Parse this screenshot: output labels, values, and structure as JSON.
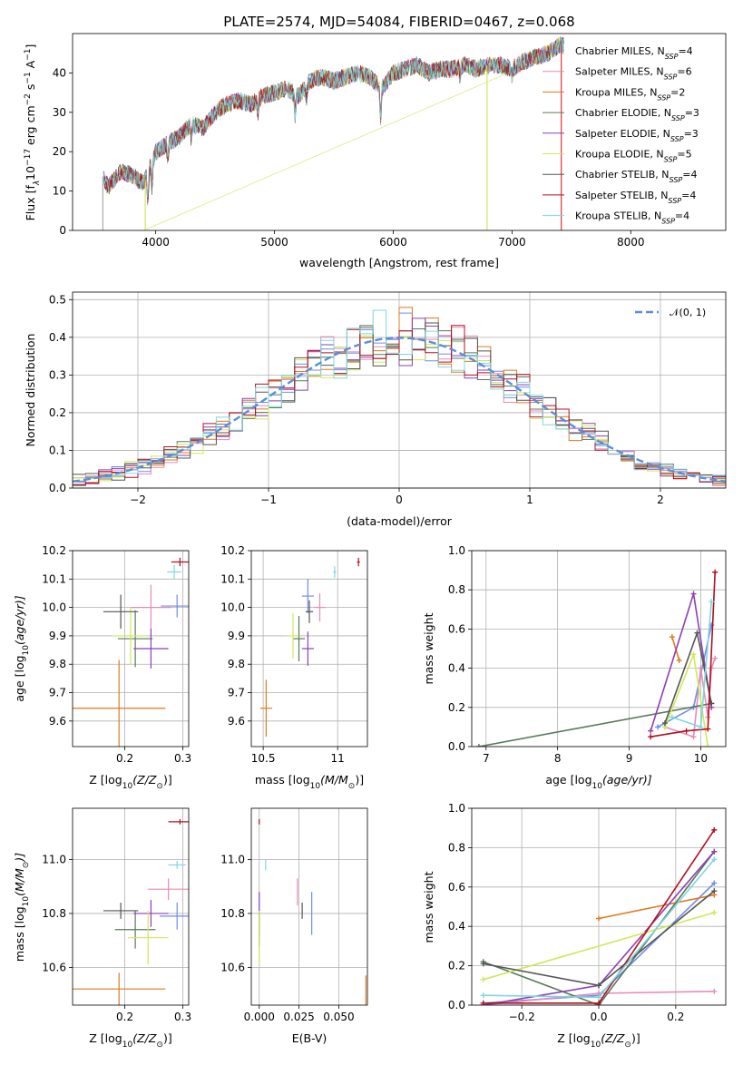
{
  "figure": {
    "title": "PLATE=2574, MJD=54084, FIBERID=0467, z=0.068"
  },
  "models": [
    {
      "name": "Chabrier MILES",
      "n_ssp": "4",
      "color": "#6f8ee8"
    },
    {
      "name": "Salpeter MILES",
      "n_ssp": "6",
      "color": "#e68cb8"
    },
    {
      "name": "Kroupa MILES",
      "n_ssp": "2",
      "color": "#e07a1e"
    },
    {
      "name": "Chabrier ELODIE",
      "n_ssp": "3",
      "color": "#5a7a5a"
    },
    {
      "name": "Salpeter ELODIE",
      "n_ssp": "3",
      "color": "#8e3fb5"
    },
    {
      "name": "Kroupa ELODIE",
      "n_ssp": "5",
      "color": "#cfe85a"
    },
    {
      "name": "Chabrier STELIB",
      "n_ssp": "4",
      "color": "#555555"
    },
    {
      "name": "Salpeter STELIB",
      "n_ssp": "4",
      "color": "#b01020"
    },
    {
      "name": "Kroupa STELIB",
      "n_ssp": "4",
      "color": "#7fd6e0"
    }
  ],
  "legend_ssp_prefix": "N",
  "legend_ssp_sub": "SSP",
  "chart_data": [
    {
      "id": "spectrum",
      "type": "line",
      "xlabel": "wavelength [Angstrom, rest frame]",
      "ylabel": "Flux [f",
      "ylabel_lambda": "λ",
      "ylabel_rest": "10",
      "ylabel_exp1": "−17",
      "ylabel_mid": " erg cm",
      "ylabel_exp2": "−2",
      "ylabel_mid2": " s",
      "ylabel_exp3": "−1",
      "ylabel_end": " A",
      "ylabel_exp4": "−1",
      "ylabel_close": "]",
      "xlim": [
        3300,
        8800
      ],
      "ylim": [
        0,
        50
      ],
      "xticks": [
        4000,
        5000,
        6000,
        7000,
        8000
      ],
      "yticks": [
        0,
        10,
        20,
        30,
        40
      ],
      "grid": false,
      "legend": "top-right",
      "description_points": {
        "x": [
          3550,
          3600,
          3700,
          3800,
          3900,
          4000,
          4100,
          4200,
          4300,
          4400,
          4500,
          4600,
          4700,
          4800,
          4900,
          5000,
          5100,
          5200,
          5300,
          5400,
          5500,
          5600,
          5700,
          5800,
          5900,
          6000,
          6100,
          6200,
          6300,
          6400,
          6500,
          6600,
          6700,
          6800,
          6900,
          7000,
          7100,
          7200,
          7300,
          7400
        ],
        "y": [
          14,
          11,
          15,
          14,
          12,
          20,
          22,
          24,
          27,
          26,
          30,
          32,
          33,
          32,
          34,
          35,
          36,
          34,
          38,
          39,
          38,
          39,
          40,
          39,
          36,
          40,
          41,
          42,
          40,
          41,
          41,
          42,
          41,
          42,
          42,
          41,
          43,
          44,
          45,
          47
        ]
      }
    },
    {
      "id": "residuals",
      "type": "bar",
      "xlabel": "(data-model)/error",
      "ylabel": "Normed distribution",
      "xlim": [
        -2.5,
        2.5
      ],
      "ylim": [
        0,
        0.52
      ],
      "xticks": [
        -2,
        -1,
        0,
        1,
        2
      ],
      "yticks": [
        0.0,
        0.1,
        0.2,
        0.3,
        0.4,
        0.5
      ],
      "grid": true,
      "legend": "top-right",
      "legend_label": "𝒩(0, 1)",
      "bin_width": 0.1,
      "bin_start": -2.5
    },
    {
      "id": "age-vs-Z",
      "type": "scatter",
      "xlabel": "Z [log",
      "xlabel_sub": "10",
      "xlabel_mid": "(Z/Z",
      "xlabel_sub2": "⊙",
      "xlabel_end": ")]",
      "ylabel": "age  [log",
      "ylabel_sub": "10",
      "ylabel_end": "(age/yr)]",
      "xlim": [
        0.11,
        0.31
      ],
      "ylim": [
        9.51,
        10.2
      ],
      "xticks": [
        0.2,
        0.3
      ],
      "yticks": [
        9.6,
        9.7,
        9.8,
        9.9,
        10.0,
        10.1,
        10.2
      ],
      "grid": true,
      "points": [
        {
          "model": 0,
          "x": 0.29,
          "y": 10.005,
          "xerr": 0.028,
          "yerr": 0.04
        },
        {
          "model": 1,
          "x": 0.245,
          "y": 10.0,
          "xerr": 0.035,
          "yerr": 0.08
        },
        {
          "model": 2,
          "x": 0.19,
          "y": 9.645,
          "xerr": 0.08,
          "yerr": 0.17
        },
        {
          "model": 3,
          "x": 0.218,
          "y": 9.89,
          "xerr": 0.03,
          "yerr": 0.1
        },
        {
          "model": 4,
          "x": 0.245,
          "y": 9.855,
          "xerr": 0.03,
          "yerr": 0.07
        },
        {
          "model": 5,
          "x": 0.21,
          "y": 9.9,
          "xerr": 0.03,
          "yerr": 0.1
        },
        {
          "model": 6,
          "x": 0.193,
          "y": 9.985,
          "xerr": 0.03,
          "yerr": 0.06
        },
        {
          "model": 7,
          "x": 0.295,
          "y": 10.16,
          "xerr": 0.015,
          "yerr": 0.015
        },
        {
          "model": 8,
          "x": 0.285,
          "y": 10.125,
          "xerr": 0.012,
          "yerr": 0.025
        }
      ]
    },
    {
      "id": "age-vs-mass",
      "type": "scatter",
      "xlabel": "mass [log",
      "xlabel_sub": "10",
      "xlabel_mid": "(M/M",
      "xlabel_sub2": "⊙",
      "xlabel_end": ")]",
      "xlim": [
        10.42,
        11.2
      ],
      "ylim": [
        9.51,
        10.2
      ],
      "xticks": [
        10.5,
        11.0
      ],
      "yticks": [
        9.6,
        9.7,
        9.8,
        9.9,
        10.0,
        10.1,
        10.2
      ],
      "grid": true,
      "points": [
        {
          "model": 0,
          "x": 10.8,
          "y": 10.04,
          "xerr": 0.04,
          "yerr": 0.06
        },
        {
          "model": 1,
          "x": 10.88,
          "y": 10.0,
          "xerr": 0.04,
          "yerr": 0.05
        },
        {
          "model": 2,
          "x": 10.52,
          "y": 9.645,
          "xerr": 0.04,
          "yerr": 0.1
        },
        {
          "model": 3,
          "x": 10.74,
          "y": 9.89,
          "xerr": 0.04,
          "yerr": 0.08
        },
        {
          "model": 4,
          "x": 10.8,
          "y": 9.855,
          "xerr": 0.04,
          "yerr": 0.06
        },
        {
          "model": 5,
          "x": 10.7,
          "y": 9.9,
          "xerr": 0.04,
          "yerr": 0.08
        },
        {
          "model": 6,
          "x": 10.81,
          "y": 9.985,
          "xerr": 0.025,
          "yerr": 0.04
        },
        {
          "model": 7,
          "x": 11.14,
          "y": 10.16,
          "xerr": 0.01,
          "yerr": 0.015
        },
        {
          "model": 8,
          "x": 10.98,
          "y": 10.125,
          "xerr": 0.01,
          "yerr": 0.02
        }
      ]
    },
    {
      "id": "weight-vs-age",
      "type": "line",
      "xlabel": "age  [log",
      "xlabel_sub": "10",
      "xlabel_end": "(age/yr)]",
      "ylabel": "mass weight",
      "xlim": [
        6.8,
        10.35
      ],
      "ylim": [
        0,
        1.0
      ],
      "xticks": [
        7,
        8,
        9,
        10
      ],
      "yticks": [
        0.0,
        0.2,
        0.4,
        0.6,
        0.8,
        1.0
      ],
      "grid": true,
      "series": [
        {
          "model": 0,
          "x": [
            9.4,
            9.9,
            10.15
          ],
          "y": [
            0.1,
            0.2,
            0.62
          ]
        },
        {
          "model": 1,
          "x": [
            9.5,
            9.9,
            10.0,
            10.1,
            10.15,
            10.2
          ],
          "y": [
            0.1,
            0.05,
            0.4,
            0.15,
            0.4,
            0.45
          ]
        },
        {
          "model": 2,
          "x": [
            9.6,
            9.7
          ],
          "y": [
            0.56,
            0.44
          ]
        },
        {
          "model": 3,
          "x": [
            6.9,
            10.15
          ],
          "y": [
            0.0,
            0.22
          ]
        },
        {
          "model": 4,
          "x": [
            9.3,
            9.9,
            10.15
          ],
          "y": [
            0.08,
            0.78,
            0.2
          ]
        },
        {
          "model": 5,
          "x": [
            9.5,
            9.9,
            10.1
          ],
          "y": [
            0.1,
            0.47,
            0.0
          ]
        },
        {
          "model": 6,
          "x": [
            9.5,
            9.95,
            10.15
          ],
          "y": [
            0.12,
            0.58,
            0.22
          ]
        },
        {
          "model": 7,
          "x": [
            9.3,
            9.8,
            10.1,
            10.2
          ],
          "y": [
            0.05,
            0.08,
            0.09,
            0.89
          ]
        },
        {
          "model": 8,
          "x": [
            9.6,
            10.0,
            10.15
          ],
          "y": [
            0.15,
            0.1,
            0.74
          ]
        }
      ]
    },
    {
      "id": "mass-vs-Z",
      "type": "scatter",
      "xlabel": "Z [log",
      "xlabel_sub": "10",
      "xlabel_mid": "(Z/Z",
      "xlabel_sub2": "⊙",
      "xlabel_end": ")]",
      "ylabel": "mass [log",
      "ylabel_sub": "10",
      "ylabel_mid": "(M/M",
      "ylabel_sub2": "⊙",
      "ylabel_end": ")]",
      "xlim": [
        0.11,
        0.31
      ],
      "ylim": [
        10.46,
        11.19
      ],
      "xticks": [
        0.2,
        0.3
      ],
      "yticks": [
        10.6,
        10.8,
        11.0
      ],
      "grid": true,
      "points": [
        {
          "model": 0,
          "x": 0.29,
          "y": 10.79,
          "xerr": 0.03,
          "yerr": 0.05
        },
        {
          "model": 1,
          "x": 0.275,
          "y": 10.89,
          "xerr": 0.035,
          "yerr": 0.04
        },
        {
          "model": 2,
          "x": 0.19,
          "y": 10.52,
          "xerr": 0.08,
          "yerr": 0.06
        },
        {
          "model": 3,
          "x": 0.218,
          "y": 10.74,
          "xerr": 0.035,
          "yerr": 0.07
        },
        {
          "model": 4,
          "x": 0.245,
          "y": 10.8,
          "xerr": 0.03,
          "yerr": 0.05
        },
        {
          "model": 5,
          "x": 0.24,
          "y": 10.71,
          "xerr": 0.035,
          "yerr": 0.1
        },
        {
          "model": 6,
          "x": 0.193,
          "y": 10.81,
          "xerr": 0.03,
          "yerr": 0.03
        },
        {
          "model": 7,
          "x": 0.295,
          "y": 11.14,
          "xerr": 0.02,
          "yerr": 0.01
        },
        {
          "model": 8,
          "x": 0.29,
          "y": 10.98,
          "xerr": 0.015,
          "yerr": 0.015
        }
      ]
    },
    {
      "id": "mass-vs-ebv",
      "type": "scatter",
      "xlabel": "E(B-V)",
      "xlim": [
        -0.005,
        0.068
      ],
      "ylim": [
        10.46,
        11.19
      ],
      "xticks": [
        0.0,
        0.025,
        0.05
      ],
      "xtick_labels": [
        "0.000",
        "0.025",
        "0.050"
      ],
      "yticks": [
        10.6,
        10.8,
        11.0
      ],
      "grid": true,
      "points": [
        {
          "model": 0,
          "x": 0.033,
          "y": 10.8,
          "xerr": 0.0,
          "yerr": 0.08
        },
        {
          "model": 1,
          "x": 0.024,
          "y": 10.88,
          "xerr": 0.0,
          "yerr": 0.05
        },
        {
          "model": 2,
          "x": 0.067,
          "y": 10.51,
          "xerr": 0.0,
          "yerr": 0.06
        },
        {
          "model": 3,
          "x": 0.0,
          "y": 10.74,
          "xerr": 0.0,
          "yerr": 0.06
        },
        {
          "model": 4,
          "x": 0.0,
          "y": 10.8,
          "xerr": 0.0,
          "yerr": 0.08
        },
        {
          "model": 5,
          "x": 0.0,
          "y": 10.71,
          "xerr": 0.0,
          "yerr": 0.1
        },
        {
          "model": 6,
          "x": 0.027,
          "y": 10.81,
          "xerr": 0.0,
          "yerr": 0.03
        },
        {
          "model": 7,
          "x": 0.0,
          "y": 11.14,
          "xerr": 0.0,
          "yerr": 0.01
        },
        {
          "model": 8,
          "x": 0.004,
          "y": 10.98,
          "xerr": 0.0,
          "yerr": 0.02
        }
      ]
    },
    {
      "id": "weight-vs-Z",
      "type": "line",
      "xlabel": "Z [log",
      "xlabel_sub": "10",
      "xlabel_mid": "(Z/Z",
      "xlabel_sub2": "⊙",
      "xlabel_end": ")]",
      "ylabel": "mass weight",
      "xlim": [
        -0.33,
        0.33
      ],
      "ylim": [
        0,
        1.0
      ],
      "xticks": [
        -0.2,
        0.0,
        0.2
      ],
      "xtick_labels": [
        "−0.2",
        "0.0",
        "0.2"
      ],
      "yticks": [
        0.0,
        0.2,
        0.4,
        0.6,
        0.8,
        1.0
      ],
      "grid": true,
      "series": [
        {
          "model": 0,
          "x": [
            -0.3,
            0.0,
            0.3
          ],
          "y": [
            0.01,
            0.05,
            0.62
          ]
        },
        {
          "model": 1,
          "x": [
            -0.3,
            0.0,
            0.3
          ],
          "y": [
            0.0,
            0.06,
            0.07
          ]
        },
        {
          "model": 2,
          "x": [
            0.0,
            0.3
          ],
          "y": [
            0.44,
            0.56
          ]
        },
        {
          "model": 3,
          "x": [
            -0.3,
            0.0,
            0.3
          ],
          "y": [
            0.22,
            0.0,
            0.78
          ]
        },
        {
          "model": 4,
          "x": [
            -0.3,
            0.0,
            0.3
          ],
          "y": [
            0.0,
            0.1,
            0.78
          ]
        },
        {
          "model": 5,
          "x": [
            -0.3,
            0.3
          ],
          "y": [
            0.13,
            0.47
          ]
        },
        {
          "model": 6,
          "x": [
            -0.3,
            0.0,
            0.3
          ],
          "y": [
            0.21,
            0.1,
            0.58
          ]
        },
        {
          "model": 7,
          "x": [
            -0.3,
            0.0,
            0.3
          ],
          "y": [
            0.01,
            0.01,
            0.89
          ]
        },
        {
          "model": 8,
          "x": [
            -0.3,
            0.0,
            0.3
          ],
          "y": [
            0.05,
            0.04,
            0.74
          ]
        }
      ]
    }
  ]
}
